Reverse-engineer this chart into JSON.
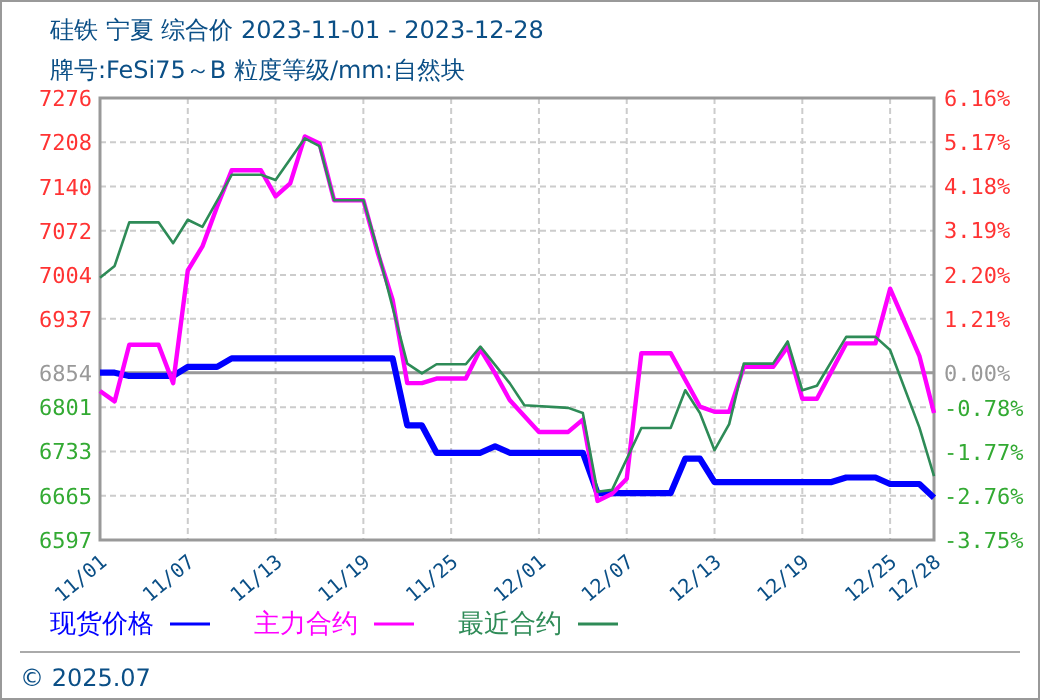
{
  "chart_data": {
    "type": "line",
    "title": "硅铁 宁夏 综合价 2023-11-01 - 2023-12-28",
    "subtitle": "牌号:FeSi75～B 粒度等级/mm:自然块",
    "annotations": [
      "© 2025.07"
    ],
    "xlim": [
      "2023-11-01",
      "2023-12-28"
    ],
    "xticks": [
      {
        "value": "2023-11-01",
        "label": "11/01"
      },
      {
        "value": "2023-11-07",
        "label": "11/07"
      },
      {
        "value": "2023-11-13",
        "label": "11/13"
      },
      {
        "value": "2023-11-19",
        "label": "11/19"
      },
      {
        "value": "2023-11-25",
        "label": "11/25"
      },
      {
        "value": "2023-12-01",
        "label": "12/01"
      },
      {
        "value": "2023-12-07",
        "label": "12/07"
      },
      {
        "value": "2023-12-13",
        "label": "12/13"
      },
      {
        "value": "2023-12-19",
        "label": "12/19"
      },
      {
        "value": "2023-12-25",
        "label": "12/25"
      },
      {
        "value": "2023-12-28",
        "label": "12/28"
      }
    ],
    "ylim": [
      6597,
      7276
    ],
    "yticks": [
      6597,
      6665,
      6733,
      6801,
      6854,
      6937,
      7004,
      7072,
      7140,
      7208,
      7276
    ],
    "y2lim": [
      -3.75,
      6.16
    ],
    "y2ticks": [
      {
        "value": -3.75,
        "label": "-3.75%"
      },
      {
        "value": -2.76,
        "label": "-2.76%"
      },
      {
        "value": -1.77,
        "label": "-1.77%"
      },
      {
        "value": -0.78,
        "label": "-0.78%"
      },
      {
        "value": 0,
        "label": "0.00%"
      },
      {
        "value": 1.21,
        "label": "1.21%"
      },
      {
        "value": 2.2,
        "label": "2.20%"
      },
      {
        "value": 3.19,
        "label": "3.19%"
      },
      {
        "value": 4.18,
        "label": "4.18%"
      },
      {
        "value": 5.17,
        "label": "5.17%"
      },
      {
        "value": 6.16,
        "label": "6.16%"
      }
    ],
    "ref_lines": [
      {
        "axis": "y",
        "value": 6854,
        "color": "#999999"
      }
    ],
    "grid": true,
    "legend": "bottom",
    "series": [
      {
        "name": "现货价格",
        "color": "#0000ff",
        "x": [
          "2023-11-01",
          "2023-11-02",
          "2023-11-03",
          "2023-11-06",
          "2023-11-07",
          "2023-11-09",
          "2023-11-10",
          "2023-11-20",
          "2023-11-21",
          "2023-11-22",
          "2023-11-23",
          "2023-11-24",
          "2023-11-27",
          "2023-11-28",
          "2023-11-29",
          "2023-12-04",
          "2023-12-05",
          "2023-12-10",
          "2023-12-11",
          "2023-12-12",
          "2023-12-13",
          "2023-12-21",
          "2023-12-22",
          "2023-12-24",
          "2023-12-25",
          "2023-12-27",
          "2023-12-28"
        ],
        "values": [
          6854,
          6854,
          6849,
          6849,
          6863,
          6863,
          6876,
          6876,
          6876,
          6773,
          6773,
          6731,
          6731,
          6741,
          6731,
          6731,
          6669,
          6669,
          6722,
          6722,
          6686,
          6686,
          6693,
          6693,
          6683,
          6683,
          6662
        ]
      },
      {
        "name": "主力合约",
        "color": "#ff00ff",
        "x": [
          "2023-11-01",
          "2023-11-02",
          "2023-11-03",
          "2023-11-05",
          "2023-11-06",
          "2023-11-07",
          "2023-11-08",
          "2023-11-09",
          "2023-11-10",
          "2023-11-12",
          "2023-11-13",
          "2023-11-14",
          "2023-11-15",
          "2023-11-16",
          "2023-11-17",
          "2023-11-19",
          "2023-11-20",
          "2023-11-21",
          "2023-11-22",
          "2023-11-23",
          "2023-11-24",
          "2023-11-26",
          "2023-11-27",
          "2023-11-28",
          "2023-11-29",
          "2023-12-01",
          "2023-12-03",
          "2023-12-04",
          "2023-12-05",
          "2023-12-06",
          "2023-12-07",
          "2023-12-08",
          "2023-12-10",
          "2023-12-12",
          "2023-12-13",
          "2023-12-14",
          "2023-12-15",
          "2023-12-17",
          "2023-12-18",
          "2023-12-19",
          "2023-12-20",
          "2023-12-22",
          "2023-12-24",
          "2023-12-25",
          "2023-12-27",
          "2023-12-28"
        ],
        "values": [
          6826,
          6810,
          6897,
          6897,
          6838,
          7011,
          7048,
          7109,
          7165,
          7165,
          7125,
          7145,
          7217,
          7206,
          7119,
          7119,
          7037,
          6966,
          6838,
          6838,
          6845,
          6845,
          6890,
          6853,
          6812,
          6763,
          6763,
          6782,
          6657,
          6668,
          6691,
          6884,
          6884,
          6802,
          6794,
          6794,
          6863,
          6863,
          6894,
          6814,
          6814,
          6899,
          6899,
          6983,
          6880,
          6792
        ]
      },
      {
        "name": "最近合约",
        "color": "#2e8b57",
        "x": [
          "2023-11-01",
          "2023-11-02",
          "2023-11-03",
          "2023-11-05",
          "2023-11-06",
          "2023-11-07",
          "2023-11-08",
          "2023-11-10",
          "2023-11-12",
          "2023-11-13",
          "2023-11-15",
          "2023-11-16",
          "2023-11-17",
          "2023-11-19",
          "2023-11-20",
          "2023-11-22",
          "2023-11-23",
          "2023-11-24",
          "2023-11-26",
          "2023-11-27",
          "2023-11-29",
          "2023-11-30",
          "2023-12-03",
          "2023-12-04",
          "2023-12-05",
          "2023-12-06",
          "2023-12-08",
          "2023-12-10",
          "2023-12-11",
          "2023-12-12",
          "2023-12-13",
          "2023-12-14",
          "2023-12-15",
          "2023-12-17",
          "2023-12-18",
          "2023-12-19",
          "2023-12-20",
          "2023-12-22",
          "2023-12-24",
          "2023-12-25",
          "2023-12-27",
          "2023-12-28"
        ],
        "values": [
          7000,
          7018,
          7085,
          7085,
          7053,
          7089,
          7078,
          7158,
          7158,
          7150,
          7214,
          7202,
          7119,
          7119,
          7041,
          6868,
          6853,
          6867,
          6867,
          6894,
          6838,
          6804,
          6800,
          6792,
          6671,
          6674,
          6769,
          6769,
          6827,
          6792,
          6735,
          6775,
          6868,
          6868,
          6902,
          6827,
          6834,
          6909,
          6909,
          6889,
          6770,
          6695
        ]
      }
    ]
  }
}
